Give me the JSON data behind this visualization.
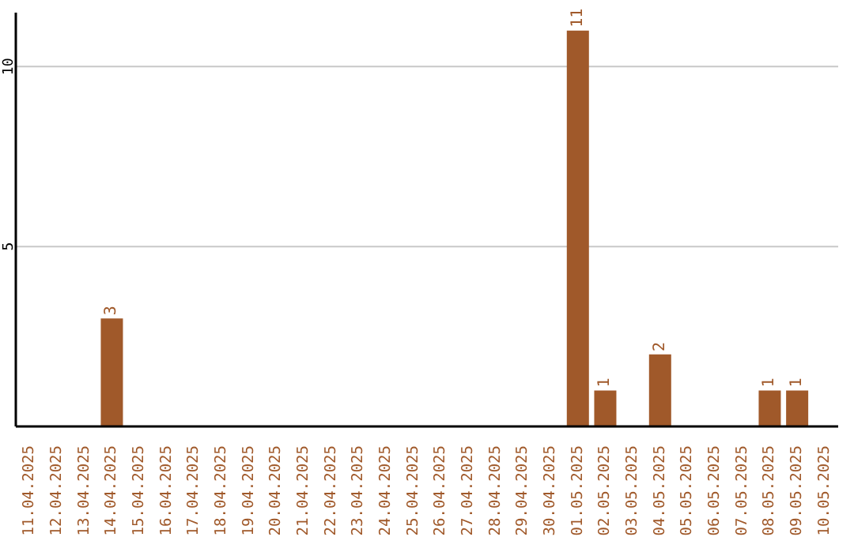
{
  "chart_data": {
    "type": "bar",
    "categories": [
      "11.04.2025",
      "12.04.2025",
      "13.04.2025",
      "14.04.2025",
      "15.04.2025",
      "16.04.2025",
      "17.04.2025",
      "18.04.2025",
      "19.04.2025",
      "20.04.2025",
      "21.04.2025",
      "22.04.2025",
      "23.04.2025",
      "24.04.2025",
      "25.04.2025",
      "26.04.2025",
      "27.04.2025",
      "28.04.2025",
      "29.04.2025",
      "30.04.2025",
      "01.05.2025",
      "02.05.2025",
      "03.05.2025",
      "04.05.2025",
      "05.05.2025",
      "06.05.2025",
      "07.05.2025",
      "08.05.2025",
      "09.05.2025",
      "10.05.2025"
    ],
    "values": [
      0,
      0,
      0,
      3,
      0,
      0,
      0,
      0,
      0,
      0,
      0,
      0,
      0,
      0,
      0,
      0,
      0,
      0,
      0,
      0,
      11,
      1,
      0,
      2,
      0,
      0,
      0,
      1,
      1,
      0
    ],
    "value_labels": [
      null,
      null,
      null,
      "3",
      null,
      null,
      null,
      null,
      null,
      null,
      null,
      null,
      null,
      null,
      null,
      null,
      null,
      null,
      null,
      null,
      "11",
      "1",
      null,
      "2",
      null,
      null,
      null,
      "1",
      "1",
      null
    ],
    "color": "#a0592a",
    "ylim": [
      0,
      11.5
    ],
    "yticks": [
      5,
      10
    ],
    "grid": "y"
  }
}
